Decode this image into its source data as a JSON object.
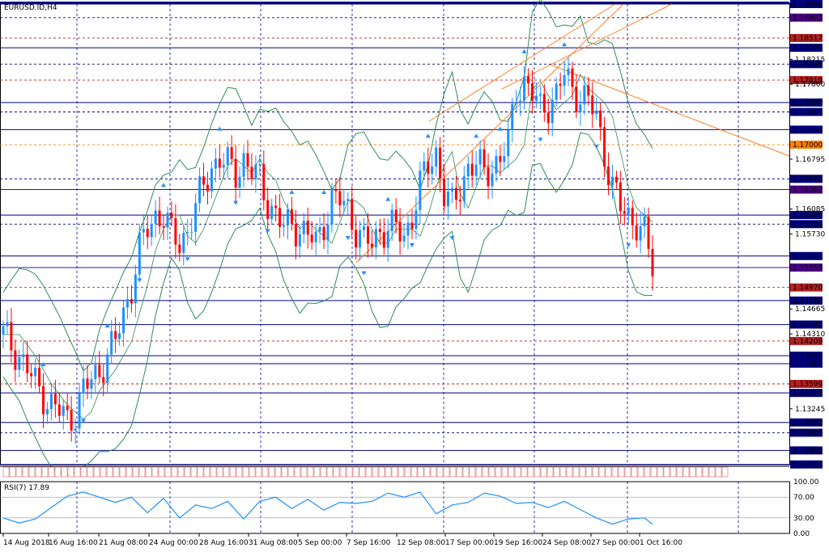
{
  "window": {
    "symbol_label": "EURUSD.ID,H4"
  },
  "indicator": {
    "label": "RSI(7) 17.89",
    "levels": [
      100.0,
      70.0,
      30.0,
      0.0
    ],
    "level_labels": [
      "100.00",
      "70.00",
      "30.00",
      "0.00"
    ]
  },
  "colors": {
    "background": "#ffffff",
    "grid": "#0000aa",
    "bull_candle": "#1e90ff",
    "bear_candle": "#ff0000",
    "bollinger": "#2e8b57",
    "trend_channel": "#ff7f27",
    "rsi_line": "#1e90ff",
    "fractal_arrow": "#1e90ff",
    "support_line": "#000080",
    "resistance_line": "#b22222",
    "label_navy": "#000080",
    "label_purple": "#4b0082",
    "label_red": "#b22222",
    "label_orange": "#ff7f00"
  },
  "chart_data": {
    "type": "line",
    "title": "EURUSD.ID,H4",
    "ylim": [
      1.1245,
      1.19
    ],
    "price_axis_ticks": [
      "1.19000",
      "1.18807",
      "1.18517",
      "1.18215",
      "1.18378",
      "1.18146",
      "1.17919",
      "1.17860",
      "1.17600",
      "1.17466",
      "1.17214",
      "1.17000",
      "1.16795",
      "1.16515",
      "1.16362",
      "1.16085",
      "1.16000",
      "1.15871",
      "1.15730",
      "1.15417",
      "1.15253",
      "1.14970",
      "1.14784",
      "1.14665",
      "1.14443",
      "1.14310",
      "1.14209",
      "1.14000",
      "1.13887",
      "1.13599",
      "1.13471",
      "1.13245",
      "1.13051",
      "1.12905",
      "1.12653",
      "1.12454"
    ],
    "horizontal_levels": [
      {
        "value": 1.19,
        "label": "1.19000",
        "style": "navy"
      },
      {
        "value": 1.18807,
        "label": "1.18807",
        "style": "purple"
      },
      {
        "value": 1.18517,
        "label": "1.18517",
        "style": "red"
      },
      {
        "value": 1.18378,
        "label": "1.18378",
        "style": "navy"
      },
      {
        "value": 1.18146,
        "label": "1.18146",
        "style": "navy"
      },
      {
        "value": 1.17919,
        "label": "1.17919",
        "style": "red"
      },
      {
        "value": 1.176,
        "label": "1.17600",
        "style": "navy"
      },
      {
        "value": 1.17466,
        "label": "1.17466",
        "style": "navy"
      },
      {
        "value": 1.17214,
        "label": "1.17214",
        "style": "navy"
      },
      {
        "value": 1.17,
        "label": "1.17000",
        "style": "orange"
      },
      {
        "value": 1.16515,
        "label": "1.16515",
        "style": "navy"
      },
      {
        "value": 1.16362,
        "label": "1.16362",
        "style": "purple"
      },
      {
        "value": 1.16,
        "label": "1.16000",
        "style": "navy"
      },
      {
        "value": 1.15871,
        "label": "1.15871",
        "style": "navy"
      },
      {
        "value": 1.15417,
        "label": "1.15417",
        "style": "navy"
      },
      {
        "value": 1.15253,
        "label": "1.15253",
        "style": "purple"
      },
      {
        "value": 1.1497,
        "label": "1.14970",
        "style": "red"
      },
      {
        "value": 1.14784,
        "label": "1.14784",
        "style": "navy"
      },
      {
        "value": 1.14443,
        "label": "1.14443",
        "style": "navy"
      },
      {
        "value": 1.14209,
        "label": "1.14209",
        "style": "red"
      },
      {
        "value": 1.14,
        "label": "1.14000",
        "style": "navy"
      },
      {
        "value": 1.13887,
        "label": "1.13887",
        "style": "navy"
      },
      {
        "value": 1.13599,
        "label": "1.13599",
        "style": "red"
      },
      {
        "value": 1.13471,
        "label": "1.13471",
        "style": "navy"
      },
      {
        "value": 1.13051,
        "label": "1.13051",
        "style": "navy"
      },
      {
        "value": 1.12905,
        "label": "1.12905",
        "style": "navy"
      },
      {
        "value": 1.12653,
        "label": "1.12653",
        "style": "navy"
      },
      {
        "value": 1.12454,
        "label": "1.12454",
        "style": "navy"
      }
    ],
    "x_tick_labels": [
      "14 Aug 2018",
      "16 Aug 16:00",
      "21 Aug 08:00",
      "24 Aug 00:00",
      "28 Aug 16:00",
      "31 Aug 08:00",
      "5 Sep 00:00",
      "7 Sep 16:00",
      "12 Sep 08:00",
      "17 Sep 00:00",
      "19 Sep 16:00",
      "24 Sep 08:00",
      "27 Sep 00:00",
      "1 Oct 16:00"
    ],
    "price_series": {
      "name": "",
      "points": [
        [
          0,
          1.143
        ],
        [
          4,
          1.14
        ],
        [
          8,
          1.136
        ],
        [
          12,
          1.133
        ],
        [
          16,
          1.131
        ],
        [
          18,
          1.132
        ],
        [
          20,
          1.135
        ],
        [
          24,
          1.138
        ],
        [
          28,
          1.142
        ],
        [
          30,
          1.146
        ],
        [
          32,
          1.15
        ],
        [
          34,
          1.155
        ],
        [
          36,
          1.158
        ],
        [
          38,
          1.16
        ],
        [
          40,
          1.16
        ],
        [
          42,
          1.157
        ],
        [
          44,
          1.156
        ],
        [
          46,
          1.158
        ],
        [
          48,
          1.161
        ],
        [
          50,
          1.164
        ],
        [
          52,
          1.167
        ],
        [
          54,
          1.168
        ],
        [
          56,
          1.167
        ],
        [
          58,
          1.166
        ],
        [
          60,
          1.168
        ],
        [
          62,
          1.166
        ],
        [
          64,
          1.165
        ],
        [
          66,
          1.162
        ],
        [
          68,
          1.16
        ],
        [
          70,
          1.158
        ],
        [
          72,
          1.159
        ],
        [
          74,
          1.158
        ],
        [
          76,
          1.157
        ],
        [
          78,
          1.156
        ],
        [
          80,
          1.159
        ],
        [
          82,
          1.162
        ],
        [
          84,
          1.162
        ],
        [
          86,
          1.161
        ],
        [
          88,
          1.158
        ],
        [
          90,
          1.156
        ],
        [
          92,
          1.156
        ],
        [
          94,
          1.158
        ],
        [
          96,
          1.158
        ],
        [
          98,
          1.158
        ],
        [
          100,
          1.157
        ],
        [
          102,
          1.16
        ],
        [
          104,
          1.164
        ],
        [
          106,
          1.167
        ],
        [
          108,
          1.169
        ],
        [
          110,
          1.163
        ],
        [
          112,
          1.161
        ],
        [
          114,
          1.164
        ],
        [
          116,
          1.167
        ],
        [
          118,
          1.167
        ],
        [
          120,
          1.166
        ],
        [
          122,
          1.167
        ],
        [
          124,
          1.168
        ],
        [
          126,
          1.17
        ],
        [
          128,
          1.178
        ],
        [
          130,
          1.179
        ],
        [
          132,
          1.177
        ],
        [
          134,
          1.175
        ],
        [
          136,
          1.176
        ],
        [
          138,
          1.177
        ],
        [
          140,
          1.18
        ],
        [
          142,
          1.178
        ],
        [
          144,
          1.177
        ],
        [
          146,
          1.176
        ],
        [
          148,
          1.174
        ],
        [
          150,
          1.169
        ],
        [
          152,
          1.164
        ],
        [
          154,
          1.161
        ],
        [
          156,
          1.16
        ],
        [
          158,
          1.159
        ],
        [
          160,
          1.157
        ],
        [
          162,
          1.1525
        ]
      ]
    },
    "rsi_series": {
      "name": "RSI(7)",
      "points": [
        [
          0,
          30
        ],
        [
          4,
          20
        ],
        [
          8,
          28
        ],
        [
          12,
          50
        ],
        [
          16,
          72
        ],
        [
          20,
          80
        ],
        [
          24,
          70
        ],
        [
          28,
          60
        ],
        [
          32,
          70
        ],
        [
          36,
          40
        ],
        [
          40,
          68
        ],
        [
          44,
          30
        ],
        [
          48,
          55
        ],
        [
          52,
          48
        ],
        [
          56,
          62
        ],
        [
          60,
          28
        ],
        [
          64,
          62
        ],
        [
          68,
          70
        ],
        [
          72,
          48
        ],
        [
          76,
          66
        ],
        [
          80,
          45
        ],
        [
          84,
          60
        ],
        [
          88,
          58
        ],
        [
          92,
          62
        ],
        [
          96,
          78
        ],
        [
          100,
          70
        ],
        [
          104,
          80
        ],
        [
          108,
          38
        ],
        [
          112,
          55
        ],
        [
          116,
          60
        ],
        [
          120,
          78
        ],
        [
          124,
          72
        ],
        [
          128,
          58
        ],
        [
          132,
          60
        ],
        [
          136,
          50
        ],
        [
          140,
          62
        ],
        [
          144,
          46
        ],
        [
          148,
          30
        ],
        [
          152,
          18
        ],
        [
          156,
          28
        ],
        [
          160,
          30
        ],
        [
          162,
          17.89
        ]
      ]
    }
  }
}
